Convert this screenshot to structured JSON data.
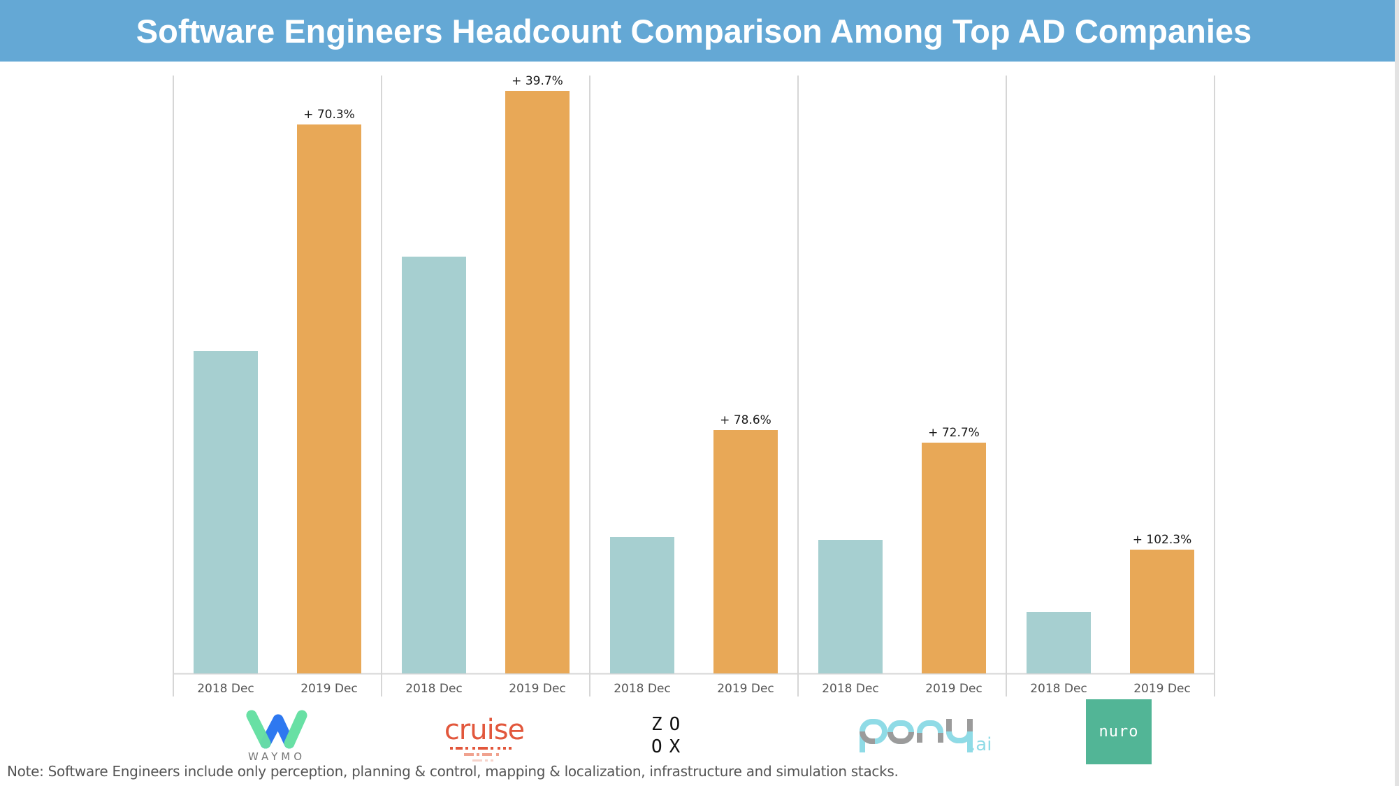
{
  "header": {
    "title": "Software Engineers Headcount Comparison Among Top AD Companies"
  },
  "colors": {
    "title_bar": "#64a8d5",
    "bar_2018": "#a6cfd0",
    "bar_2019": "#e8a857",
    "divider": "#d6d6d6"
  },
  "chart_data": {
    "type": "bar",
    "title": "Software Engineers Headcount Comparison Among Top AD Companies",
    "xlabel": "",
    "ylabel": "",
    "y_axis_shown": false,
    "value_units": "relative headcount (estimated from bar heights; no y-axis shown)",
    "ylim": [
      0,
      860
    ],
    "grid": false,
    "categories": [
      "2018 Dec",
      "2019 Dec"
    ],
    "groups": [
      {
        "company": "Waymo",
        "values": [
          461,
          785
        ],
        "growth_label": "+ 70.3%"
      },
      {
        "company": "Cruise",
        "values": [
          596,
          833
        ],
        "growth_label": "+ 39.7%"
      },
      {
        "company": "Zoox",
        "values": [
          195,
          348
        ],
        "growth_label": "+ 78.6%"
      },
      {
        "company": "Pony.ai",
        "values": [
          191,
          330
        ],
        "growth_label": "+ 72.7%"
      },
      {
        "company": "Nuro",
        "values": [
          88,
          177
        ],
        "growth_label": "+ 102.3%"
      }
    ],
    "series": [
      {
        "name": "2018 Dec",
        "values": [
          461,
          596,
          195,
          191,
          88
        ]
      },
      {
        "name": "2019 Dec",
        "values": [
          785,
          833,
          348,
          330,
          177
        ]
      }
    ]
  },
  "logos": {
    "waymo": "WAYMO",
    "cruise": "cruise",
    "zoox_row1": "ZO",
    "zoox_row2": "OX",
    "pony_main": "pony",
    "pony_suffix": ".ai",
    "nuro": "nuro"
  },
  "footer": {
    "note": "Note: Software Engineers include only perception, planning & control, mapping & localization, infrastructure and simulation stacks."
  }
}
